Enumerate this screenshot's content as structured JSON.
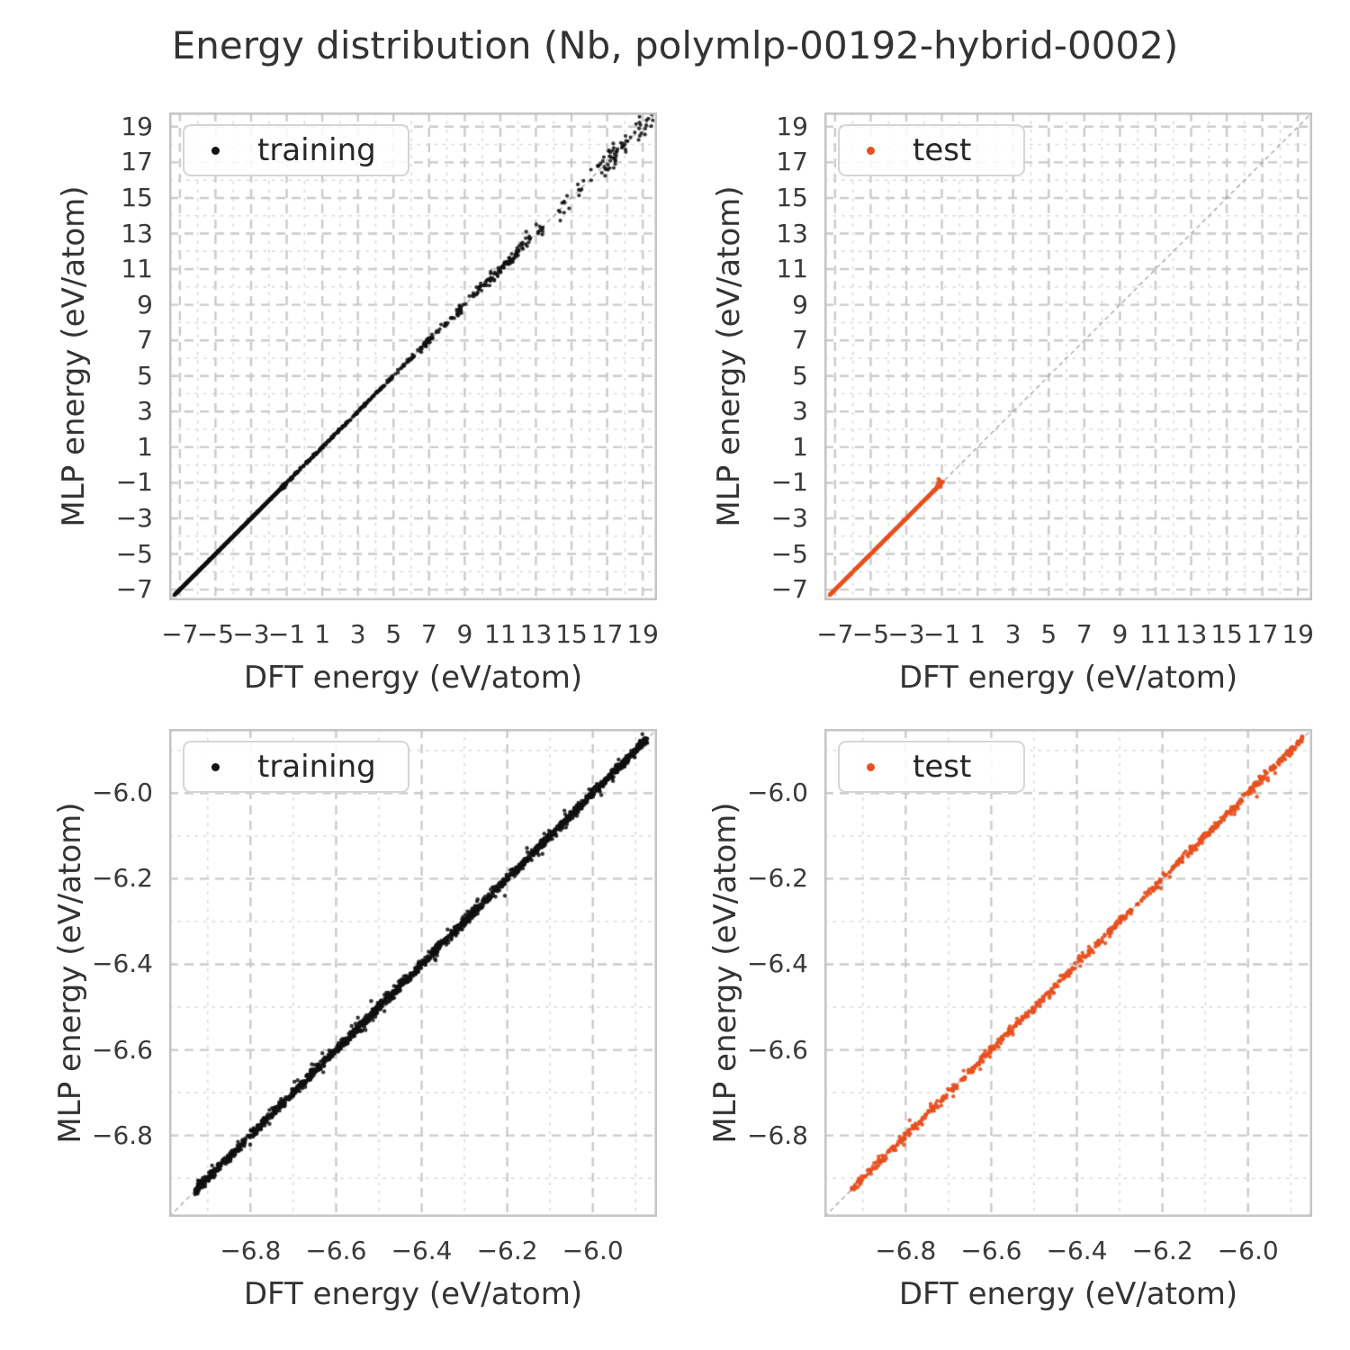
{
  "title": "Energy distribution (Nb, polymlp-00192-hybrid-0002)",
  "colors": {
    "training": "#111111",
    "test": "#e8501e",
    "grid_major": "#cbcbcb",
    "grid_minor": "#dadada",
    "frame": "#c3c3c3",
    "identity_line": "#9a9a9a",
    "text": "#333333"
  },
  "chart_data": [
    {
      "id": "training-full",
      "type": "scatter",
      "legend_label": "training",
      "series_color": "#111111",
      "xlabel": "DFT energy (eV/atom)",
      "ylabel": "MLP energy (eV/atom)",
      "xlim": [
        -7.6,
        19.8
      ],
      "ylim": [
        -7.6,
        19.8
      ],
      "tick_vals": [
        -7,
        -5,
        -3,
        -1,
        1,
        3,
        5,
        7,
        9,
        11,
        13,
        15,
        17,
        19
      ],
      "tick_labels": [
        "−7",
        "−5",
        "−3",
        "−1",
        "1",
        "3",
        "5",
        "7",
        "9",
        "11",
        "13",
        "15",
        "17",
        "19"
      ],
      "minor_step": 1,
      "identity_line": true,
      "grid": true,
      "point_radius": 2.1,
      "point_alpha": 0.85,
      "seed": 101,
      "segments": [
        {
          "mode": "line",
          "n": 950,
          "x": [
            -7.32,
            -1.05
          ],
          "noise": 0.013
        },
        {
          "mode": "line",
          "n": 70,
          "x": [
            -1.35,
            -1.05
          ],
          "noise": 0.045
        },
        {
          "mode": "line",
          "n": 230,
          "x": [
            -1.05,
            5.0
          ],
          "noise": 0.035
        },
        {
          "mode": "clusters",
          "clusters": 40,
          "pts": [
            3,
            11
          ],
          "x": [
            5.0,
            19.6
          ],
          "spread": 0.18,
          "noise_base": 0.06,
          "noise_slope": 0.022
        }
      ]
    },
    {
      "id": "test-full",
      "type": "scatter",
      "legend_label": "test",
      "series_color": "#e8501e",
      "xlabel": "DFT energy (eV/atom)",
      "ylabel": "MLP energy (eV/atom)",
      "xlim": [
        -7.6,
        19.8
      ],
      "ylim": [
        -7.6,
        19.8
      ],
      "tick_vals": [
        -7,
        -5,
        -3,
        -1,
        1,
        3,
        5,
        7,
        9,
        11,
        13,
        15,
        17,
        19
      ],
      "tick_labels": [
        "−7",
        "−5",
        "−3",
        "−1",
        "1",
        "3",
        "5",
        "7",
        "9",
        "11",
        "13",
        "15",
        "17",
        "19"
      ],
      "minor_step": 1,
      "identity_line": true,
      "grid": true,
      "point_radius": 2.1,
      "point_alpha": 0.9,
      "seed": 202,
      "segments": [
        {
          "mode": "line",
          "n": 680,
          "x": [
            -7.32,
            -1.55
          ],
          "noise": 0.011
        },
        {
          "mode": "line",
          "n": 70,
          "x": [
            -1.55,
            -1.22
          ],
          "noise": 0.02
        },
        {
          "mode": "blob",
          "n": 26,
          "cx": -1.12,
          "cy": -1.06,
          "sx": 0.06,
          "sy": 0.1
        },
        {
          "mode": "blob",
          "n": 6,
          "cx": -1.02,
          "cy": -0.97,
          "sx": 0.04,
          "sy": 0.05
        }
      ]
    },
    {
      "id": "training-zoom",
      "type": "scatter",
      "legend_label": "training",
      "series_color": "#111111",
      "xlabel": "DFT energy (eV/atom)",
      "ylabel": "MLP energy (eV/atom)",
      "xlim": [
        -6.99,
        -5.85
      ],
      "ylim": [
        -6.99,
        -5.85
      ],
      "tick_vals": [
        -6.8,
        -6.6,
        -6.4,
        -6.2,
        -6.0
      ],
      "tick_labels": [
        "−6.8",
        "−6.6",
        "−6.4",
        "−6.2",
        "−6.0"
      ],
      "minor_step": 0.1,
      "identity_line": true,
      "grid": true,
      "point_radius": 2.2,
      "point_alpha": 0.85,
      "seed": 303,
      "segments": [
        {
          "mode": "line",
          "n": 1700,
          "x": [
            -6.93,
            -5.872
          ],
          "noise": 0.0055
        },
        {
          "mode": "line",
          "n": 140,
          "x": [
            -6.93,
            -5.872
          ],
          "noise": 0.014
        }
      ]
    },
    {
      "id": "test-zoom",
      "type": "scatter",
      "legend_label": "test",
      "series_color": "#e8501e",
      "xlabel": "DFT energy (eV/atom)",
      "ylabel": "MLP energy (eV/atom)",
      "xlim": [
        -6.99,
        -5.85
      ],
      "ylim": [
        -6.99,
        -5.85
      ],
      "tick_vals": [
        -6.8,
        -6.6,
        -6.4,
        -6.2,
        -6.0
      ],
      "tick_labels": [
        "−6.8",
        "−6.6",
        "−6.4",
        "−6.2",
        "−6.0"
      ],
      "minor_step": 0.1,
      "identity_line": true,
      "grid": true,
      "point_radius": 2.2,
      "point_alpha": 0.9,
      "seed": 404,
      "segments": [
        {
          "mode": "line",
          "n": 620,
          "x": [
            -6.93,
            -5.872
          ],
          "noise": 0.0045
        },
        {
          "mode": "line",
          "n": 70,
          "x": [
            -6.93,
            -5.872
          ],
          "noise": 0.011
        }
      ]
    }
  ]
}
